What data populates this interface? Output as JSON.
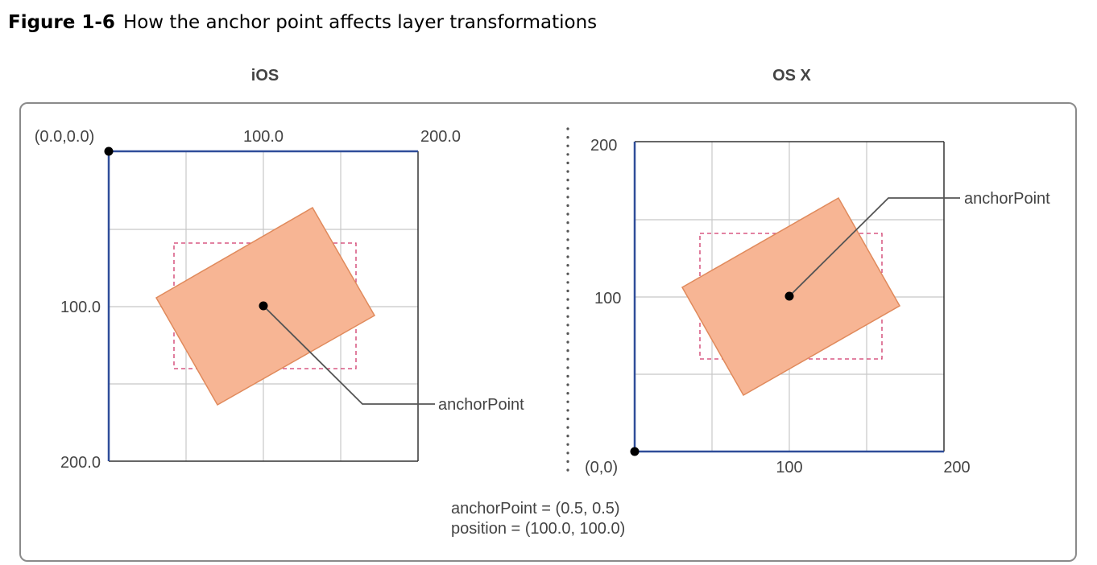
{
  "caption": {
    "number": "Figure 1-6",
    "title": "How the anchor point affects layer transformations"
  },
  "panels": {
    "ios": {
      "heading": "iOS",
      "origin_label": "(0.0,0.0)",
      "x_tick_labels": [
        "100.0",
        "200.0"
      ],
      "y_tick_labels": [
        "100.0",
        "200.0"
      ],
      "callout_label": "anchorPoint"
    },
    "osx": {
      "heading": "OS X",
      "origin_label": "(0,0)",
      "x_tick_labels": [
        "100",
        "200"
      ],
      "y_tick_labels": [
        "200",
        "100"
      ],
      "callout_label": "anchorPoint"
    }
  },
  "footer": {
    "anchor_line": "anchorPoint = (0.5, 0.5)",
    "position_line": "position = (100.0, 100.0)"
  },
  "colors": {
    "axis_blue": "#2f4d99",
    "grid": "#c8c8c8",
    "border": "#333333",
    "layer_fill": "#f7b594",
    "layer_stroke": "#e08a5c",
    "dashed_bounds": "#d0386a",
    "text": "#444444",
    "frame": "#8a8a8a"
  }
}
